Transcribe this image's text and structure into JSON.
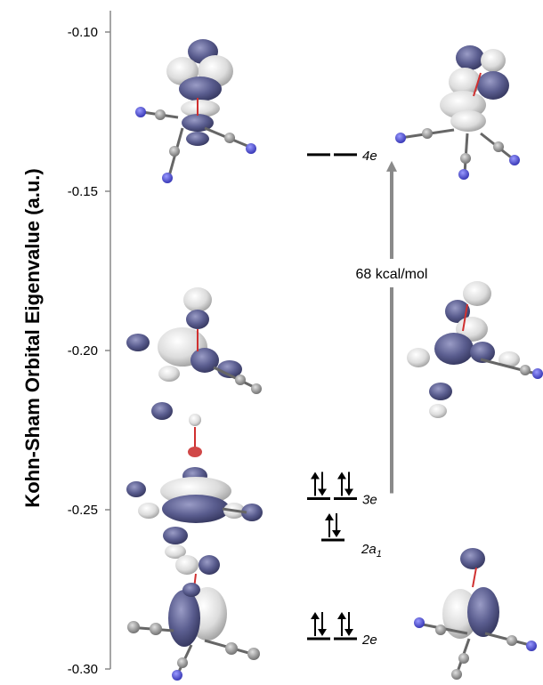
{
  "axis": {
    "ylabel": "Kohn-Sham Orbital Eigenvalue (a.u.)",
    "ticks": [
      -0.1,
      -0.15,
      -0.2,
      -0.25,
      -0.3
    ],
    "tick_labels": [
      "-0.10",
      "-0.15",
      "-0.20",
      "-0.25",
      "-0.30"
    ],
    "ylim": [
      -0.3,
      -0.1
    ]
  },
  "levels": [
    {
      "id": "4e",
      "label_main": "4e",
      "label_sub": "",
      "energy": -0.1385,
      "degeneracy": 2,
      "electrons": [
        0,
        0
      ]
    },
    {
      "id": "3e",
      "label_main": "3e",
      "label_sub": "",
      "energy": -0.2465,
      "degeneracy": 2,
      "electrons": [
        2,
        2
      ]
    },
    {
      "id": "2a1",
      "label_main": "2a",
      "label_sub": "1",
      "energy": -0.2595,
      "degeneracy": 1,
      "electrons": [
        2
      ]
    },
    {
      "id": "2e",
      "label_main": "2e",
      "label_sub": "",
      "energy": -0.2905,
      "degeneracy": 2,
      "electrons": [
        2,
        2
      ]
    }
  ],
  "gap": {
    "label": "68 kcal/mol",
    "from": "3e",
    "to": "4e"
  },
  "colors": {
    "lobe_blue": "#5a5d8f",
    "lobe_white": "#e2e2e2",
    "axis": "#888888",
    "arrow": "#8a8a8a",
    "atom_n": "#4a4adc"
  },
  "orbital_images": [
    {
      "name": "orbital-4e-left"
    },
    {
      "name": "orbital-4e-right"
    },
    {
      "name": "orbital-3e-left"
    },
    {
      "name": "orbital-3e-right"
    },
    {
      "name": "orbital-2a1"
    },
    {
      "name": "orbital-2e-left"
    },
    {
      "name": "orbital-2e-right"
    }
  ]
}
